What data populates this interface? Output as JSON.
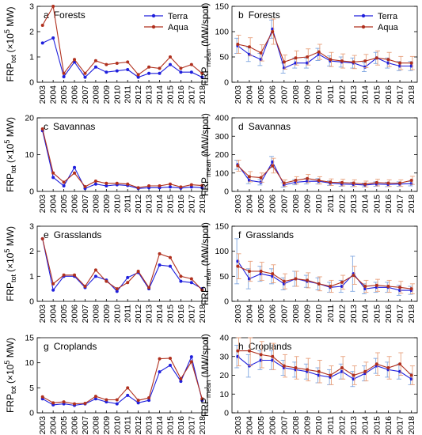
{
  "series_names": [
    "Terra",
    "Aqua"
  ],
  "colors": {
    "terra": "#1f1fdc",
    "aqua": "#b0301e",
    "axis": "#000000",
    "error": "#7fa6e0",
    "error_aqua": "#e8a07c"
  },
  "chart_data": [
    {
      "type": "line",
      "panel": "a",
      "title": "Forests",
      "letter": "a",
      "ylabel": {
        "main": "FRP",
        "sub": "tot",
        "unit_pre": "(×10",
        "unit_exp": "5",
        "unit_post": " MW)"
      },
      "x": [
        "2003",
        "2004",
        "2005",
        "2006",
        "2007",
        "2008",
        "2009",
        "2010",
        "2011",
        "2012",
        "2013",
        "2014",
        "2015",
        "2016",
        "2017",
        "2018"
      ],
      "ylim": [
        0,
        3
      ],
      "yticks": [
        0,
        1,
        2,
        3
      ],
      "legend": "top-right",
      "series": [
        {
          "name": "Terra",
          "values": [
            1.55,
            1.75,
            0.22,
            0.8,
            0.2,
            0.6,
            0.4,
            0.45,
            0.5,
            0.2,
            0.35,
            0.35,
            0.7,
            0.4,
            0.4,
            0.2
          ]
        },
        {
          "name": "Aqua",
          "values": [
            2.25,
            3.0,
            0.35,
            0.9,
            0.35,
            0.85,
            0.7,
            0.75,
            0.8,
            0.3,
            0.6,
            0.55,
            1.0,
            0.55,
            0.7,
            0.35
          ]
        }
      ]
    },
    {
      "type": "line",
      "panel": "b",
      "title": "Forests",
      "letter": "b",
      "ylabel": {
        "main": "FRP",
        "sub": "mean",
        "unit_pre": "(MW/spot)",
        "unit_exp": "",
        "unit_post": ""
      },
      "x": [
        "2003",
        "2004",
        "2005",
        "2006",
        "2007",
        "2008",
        "2009",
        "2010",
        "2011",
        "2012",
        "2013",
        "2014",
        "2015",
        "2016",
        "2017",
        "2018"
      ],
      "ylim": [
        0,
        150
      ],
      "yticks": [
        0,
        50,
        100,
        150
      ],
      "legend": "top-right",
      "series": [
        {
          "name": "Terra",
          "values": [
            72,
            55,
            45,
            105,
            28,
            38,
            38,
            55,
            42,
            40,
            38,
            30,
            48,
            38,
            32,
            32
          ],
          "error": [
            15,
            14,
            12,
            18,
            10,
            10,
            10,
            12,
            10,
            10,
            10,
            9,
            11,
            10,
            9,
            9
          ]
        },
        {
          "name": "Aqua",
          "values": [
            75,
            70,
            58,
            100,
            40,
            48,
            50,
            60,
            45,
            42,
            40,
            42,
            48,
            45,
            38,
            38
          ],
          "error": [
            18,
            18,
            16,
            25,
            14,
            14,
            16,
            15,
            14,
            14,
            13,
            13,
            14,
            14,
            13,
            13
          ]
        }
      ]
    },
    {
      "type": "line",
      "panel": "c",
      "title": "Savannas",
      "letter": "c",
      "ylabel": {
        "main": "FRP",
        "sub": "tot",
        "unit_pre": "(×10",
        "unit_exp": "5",
        "unit_post": " MW)"
      },
      "x": [
        "2003",
        "2004",
        "2005",
        "2006",
        "2007",
        "2008",
        "2009",
        "2010",
        "2011",
        "2012",
        "2013",
        "2014",
        "2015",
        "2016",
        "2017",
        "2018"
      ],
      "ylim": [
        0,
        20
      ],
      "yticks": [
        0,
        10,
        20
      ],
      "legend": "none",
      "series": [
        {
          "name": "Terra",
          "values": [
            16.5,
            3.8,
            1.5,
            6.5,
            0.8,
            2.0,
            1.5,
            1.8,
            1.6,
            0.8,
            1.0,
            1.0,
            1.2,
            0.9,
            1.2,
            1.0
          ]
        },
        {
          "name": "Aqua",
          "values": [
            17.0,
            5.0,
            2.5,
            5.0,
            1.3,
            2.8,
            2.2,
            2.2,
            2.0,
            1.0,
            1.5,
            1.5,
            2.0,
            1.2,
            1.8,
            1.6
          ]
        }
      ]
    },
    {
      "type": "line",
      "panel": "d",
      "title": "Savannas",
      "letter": "d",
      "ylabel": {
        "main": "FRP",
        "sub": "mean",
        "unit_pre": "(MW/spot)",
        "unit_exp": "",
        "unit_post": ""
      },
      "x": [
        "2003",
        "2004",
        "2005",
        "2006",
        "2007",
        "2008",
        "2009",
        "2010",
        "2011",
        "2012",
        "2013",
        "2014",
        "2015",
        "2016",
        "2017",
        "2018"
      ],
      "ylim": [
        0,
        400
      ],
      "yticks": [
        0,
        100,
        200,
        300,
        400
      ],
      "legend": "none",
      "series": [
        {
          "name": "Terra",
          "values": [
            145,
            60,
            50,
            160,
            35,
            50,
            55,
            55,
            45,
            40,
            38,
            35,
            40,
            38,
            40,
            42
          ],
          "error": [
            25,
            18,
            15,
            30,
            12,
            14,
            15,
            15,
            12,
            12,
            12,
            10,
            12,
            12,
            12,
            12
          ]
        },
        {
          "name": "Aqua",
          "values": [
            140,
            80,
            75,
            140,
            45,
            60,
            70,
            60,
            50,
            48,
            45,
            40,
            48,
            45,
            45,
            60
          ],
          "error": [
            30,
            28,
            25,
            40,
            18,
            20,
            22,
            20,
            18,
            18,
            18,
            16,
            18,
            18,
            18,
            22
          ]
        }
      ]
    },
    {
      "type": "line",
      "panel": "e",
      "title": "Grasslands",
      "letter": "e",
      "ylabel": {
        "main": "FRP",
        "sub": "tot",
        "unit_pre": "(×10",
        "unit_exp": "5",
        "unit_post": " MW)"
      },
      "x": [
        "2003",
        "2004",
        "2005",
        "2006",
        "2007",
        "2008",
        "2009",
        "2010",
        "2011",
        "2012",
        "2013",
        "2014",
        "2015",
        "2016",
        "2017",
        "2018"
      ],
      "ylim": [
        0,
        3
      ],
      "yticks": [
        0,
        1,
        2,
        3
      ],
      "legend": "none",
      "series": [
        {
          "name": "Terra",
          "values": [
            2.5,
            0.45,
            1.0,
            1.0,
            0.55,
            1.0,
            0.85,
            0.4,
            0.95,
            1.15,
            0.5,
            1.45,
            1.4,
            0.8,
            0.75,
            0.5
          ]
        },
        {
          "name": "Aqua",
          "values": [
            2.5,
            0.7,
            1.05,
            1.05,
            0.6,
            1.25,
            0.8,
            0.5,
            0.75,
            1.2,
            0.55,
            1.9,
            1.75,
            1.0,
            0.9,
            0.45
          ]
        }
      ]
    },
    {
      "type": "line",
      "panel": "f",
      "title": "Grasslands",
      "letter": "f",
      "ylabel": {
        "main": "FRP",
        "sub": "mean",
        "unit_pre": "(MW/spot)",
        "unit_exp": "",
        "unit_post": ""
      },
      "x": [
        "2003",
        "2004",
        "2005",
        "2006",
        "2007",
        "2008",
        "2009",
        "2010",
        "2011",
        "2012",
        "2013",
        "2014",
        "2015",
        "2016",
        "2017",
        "2018"
      ],
      "ylim": [
        0,
        150
      ],
      "yticks": [
        0,
        50,
        100,
        150
      ],
      "legend": "none",
      "series": [
        {
          "name": "Terra",
          "values": [
            80,
            45,
            55,
            50,
            35,
            45,
            40,
            35,
            28,
            30,
            55,
            25,
            28,
            28,
            22,
            22
          ],
          "error": [
            45,
            20,
            15,
            15,
            12,
            15,
            12,
            12,
            10,
            12,
            35,
            10,
            10,
            10,
            10,
            8
          ]
        },
        {
          "name": "Aqua",
          "values": [
            70,
            60,
            60,
            55,
            40,
            45,
            42,
            35,
            30,
            38,
            52,
            30,
            32,
            30,
            28,
            25
          ],
          "error": [
            25,
            20,
            18,
            18,
            15,
            15,
            15,
            14,
            12,
            14,
            18,
            12,
            12,
            12,
            12,
            10
          ]
        }
      ]
    },
    {
      "type": "line",
      "panel": "g",
      "title": "Croplands",
      "letter": "g",
      "ylabel": {
        "main": "FRP",
        "sub": "tot",
        "unit_pre": "(×10",
        "unit_exp": "5",
        "unit_post": " MW)"
      },
      "x": [
        "2003",
        "2004",
        "2005",
        "2006",
        "2007",
        "2008",
        "2009",
        "2010",
        "2011",
        "2012",
        "2013",
        "2014",
        "2015",
        "2016",
        "2017",
        "2018"
      ],
      "ylim": [
        0,
        15
      ],
      "yticks": [
        0,
        5,
        10,
        15
      ],
      "legend": "none",
      "series": [
        {
          "name": "Terra",
          "values": [
            2.8,
            1.6,
            1.8,
            1.5,
            1.8,
            2.8,
            2.2,
            1.8,
            3.5,
            2.0,
            2.5,
            8.2,
            9.5,
            6.3,
            11.2,
            2.5
          ]
        },
        {
          "name": "Aqua",
          "values": [
            3.2,
            2.0,
            2.2,
            1.8,
            1.9,
            3.3,
            2.6,
            2.6,
            5.0,
            2.5,
            3.0,
            10.8,
            10.9,
            6.8,
            10.2,
            2.8
          ]
        }
      ]
    },
    {
      "type": "line",
      "panel": "h",
      "title": "Croplands",
      "letter": "h",
      "ylabel": {
        "main": "FRP",
        "sub": "mean",
        "unit_pre": "(MW/spot)",
        "unit_exp": "",
        "unit_post": ""
      },
      "x": [
        "2003",
        "2004",
        "2005",
        "2006",
        "2007",
        "2008",
        "2009",
        "2010",
        "2011",
        "2012",
        "2013",
        "2014",
        "2015",
        "2016",
        "2017",
        "2018"
      ],
      "ylim": [
        0,
        40
      ],
      "yticks": [
        0,
        10,
        20,
        30,
        40
      ],
      "legend": "none",
      "series": [
        {
          "name": "Terra",
          "values": [
            30,
            25,
            28,
            28,
            24,
            23,
            22,
            20,
            19,
            22,
            18,
            21,
            25,
            23,
            22,
            18
          ],
          "error": [
            6,
            6,
            5,
            5,
            4,
            4,
            4,
            4,
            4,
            4,
            4,
            4,
            4,
            4,
            4,
            3
          ]
        },
        {
          "name": "Aqua",
          "values": [
            33,
            33,
            31,
            30,
            25,
            24,
            23,
            22,
            20,
            24,
            20,
            22,
            26,
            24,
            26,
            20
          ],
          "error": [
            8,
            8,
            7,
            7,
            6,
            6,
            6,
            6,
            5,
            6,
            5,
            5,
            6,
            6,
            6,
            5
          ]
        }
      ]
    }
  ]
}
